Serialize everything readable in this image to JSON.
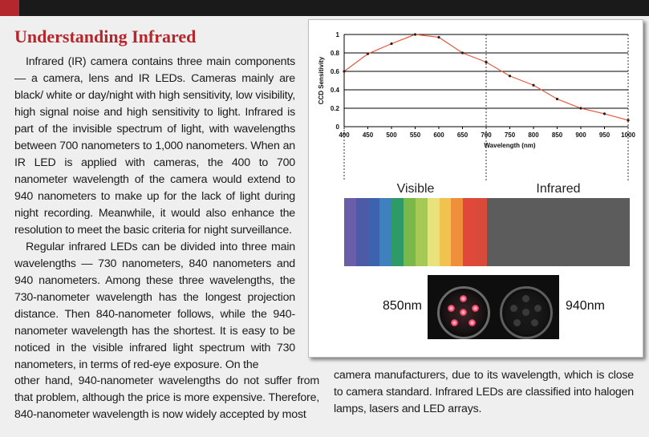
{
  "header": {
    "title": "Understanding Infrared"
  },
  "article": {
    "p1": "Infrared (IR) camera contains three main components — a camera, lens and IR LEDs. Cameras mainly are black/ white or day/night with high sensitivity, low visibility, high signal noise and high sensitivity to light. Infrared is part of the invisible spectrum of light, with wavelengths between 700 nanometers to 1,000 nanometers. When an IR LED is applied with cameras, the 400 to 700 nanometer wavelength of the camera would extend to 940 nanometers to make up for the lack of light during night recording. Meanwhile, it would also enhance the resolution to meet the basic criteria for night surveillance.",
    "p2": "Regular infrared LEDs can be divided into three main wavelengths — 730 nanometers, 840 nanometers and 940 nanometers. Among these three wavelengths, the 730-nanometer wavelength has the longest projection distance. Then 840-nanometer follows, while the 940-nanometer wavelength has the shortest. It is easy to be noticed in the visible infrared light spectrum with 730 nanometers, in terms of red-eye exposure. On the",
    "p2b": "other hand, 940-nanometer wavelengths do not suffer from that problem, although the price is more expensive. Therefore, 840-nanometer wavelength is now widely accepted by most",
    "p3": "camera manufacturers, due to its wavelength, which is close to camera standard. Infrared LEDs are classified into halogen lamps, lasers and LED arrays."
  },
  "figure": {
    "visible_label": "Visible",
    "infrared_label": "Infrared",
    "caption_850": "850nm",
    "caption_940": "940nm",
    "spectrum_colors": [
      "#6b5ea8",
      "#4f5aa6",
      "#3e63ae",
      "#3f80bf",
      "#2e9a6a",
      "#7bb84a",
      "#a6c955",
      "#e8e27a",
      "#f0c24f",
      "#ef8f3c",
      "#e0483a",
      "#d94a3a"
    ],
    "infrared_color": "#5c5c5c",
    "line_color": "#e8573c"
  },
  "chart_data": {
    "type": "line",
    "xlabel": "Wavelength (nm)",
    "ylabel": "CCD Sensitivity",
    "xlim": [
      400,
      1000
    ],
    "ylim": [
      0,
      1
    ],
    "xticks": [
      400,
      450,
      500,
      550,
      600,
      650,
      700,
      750,
      800,
      850,
      900,
      950,
      1000
    ],
    "yticks": [
      0,
      0.2,
      0.4,
      0.6,
      0.8,
      1
    ],
    "ytick_labels": [
      "0",
      "0.2",
      "0.4",
      "0.6",
      "0.8",
      "1"
    ],
    "grid": "horizontal",
    "markers": [
      700,
      1000
    ],
    "series": [
      {
        "x": [
          400,
          450,
          500,
          550,
          600,
          650,
          700,
          750,
          800,
          850,
          900,
          950,
          1000
        ],
        "values": [
          0.6,
          0.79,
          0.9,
          1.0,
          0.97,
          0.8,
          0.7,
          0.55,
          0.45,
          0.3,
          0.2,
          0.14,
          0.07
        ]
      }
    ]
  }
}
